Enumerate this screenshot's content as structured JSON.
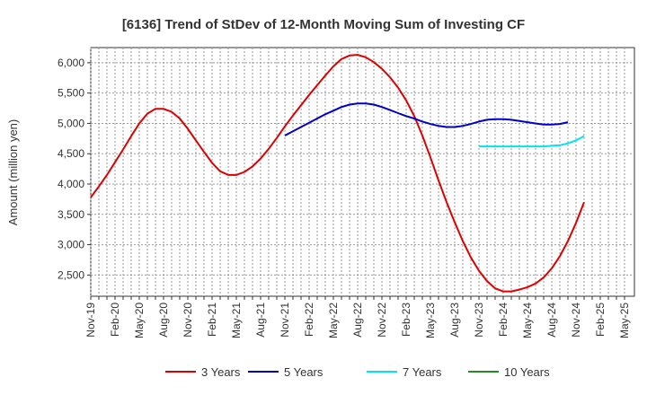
{
  "chart_data": {
    "type": "line",
    "title": "[6136]  Trend of StDev of 12-Month Moving Sum of Investing CF",
    "xlabel": "",
    "ylabel": "Amount (million yen)",
    "ylim": [
      2150,
      6250
    ],
    "y_ticks": [
      2500,
      3000,
      3500,
      4000,
      4500,
      5000,
      5500,
      6000
    ],
    "y_tick_labels": [
      "2,500",
      "3,000",
      "3,500",
      "4,000",
      "4,500",
      "5,000",
      "5,500",
      "6,000"
    ],
    "x_ticks": [
      "Nov-19",
      "Feb-20",
      "May-20",
      "Aug-20",
      "Nov-20",
      "Feb-21",
      "May-21",
      "Aug-21",
      "Nov-21",
      "Feb-22",
      "May-22",
      "Aug-22",
      "Nov-22",
      "Feb-23",
      "May-23",
      "Aug-23",
      "Nov-23",
      "Feb-24",
      "May-24",
      "Aug-24",
      "Nov-24",
      "Feb-25",
      "May-25"
    ],
    "grid": true,
    "legend_position": "bottom",
    "series": [
      {
        "name": "3 Years",
        "color": "#dd0000",
        "start_index": 0,
        "values": [
          3780,
          3960,
          4150,
          4360,
          4570,
          4790,
          5000,
          5160,
          5240,
          5240,
          5190,
          5080,
          4910,
          4720,
          4530,
          4350,
          4210,
          4150,
          4150,
          4200,
          4290,
          4420,
          4580,
          4760,
          4950,
          5130,
          5300,
          5470,
          5630,
          5790,
          5940,
          6060,
          6120,
          6130,
          6090,
          6010,
          5900,
          5760,
          5590,
          5380,
          5120,
          4800,
          4440,
          4060,
          3700,
          3370,
          3060,
          2790,
          2570,
          2400,
          2280,
          2230,
          2230,
          2260,
          2300,
          2360,
          2460,
          2610,
          2810,
          3060,
          3360,
          3700
        ]
      },
      {
        "name": "5 Years",
        "color": "#0000cc",
        "start_index": 24,
        "values": [
          4800,
          4870,
          4940,
          5010,
          5080,
          5150,
          5210,
          5270,
          5310,
          5330,
          5330,
          5310,
          5270,
          5220,
          5170,
          5120,
          5080,
          5030,
          4990,
          4960,
          4940,
          4940,
          4960,
          4990,
          5030,
          5060,
          5070,
          5070,
          5060,
          5040,
          5020,
          5000,
          4980,
          4980,
          4990,
          5020
        ]
      },
      {
        "name": "7 Years",
        "color": "#00e5ee",
        "start_index": 48,
        "values": [
          4620,
          4620,
          4620,
          4620,
          4620,
          4620,
          4620,
          4620,
          4620,
          4630,
          4640,
          4670,
          4720,
          4790
        ]
      },
      {
        "name": "10 Years",
        "color": "#228b22",
        "start_index": 0,
        "values": []
      }
    ]
  }
}
